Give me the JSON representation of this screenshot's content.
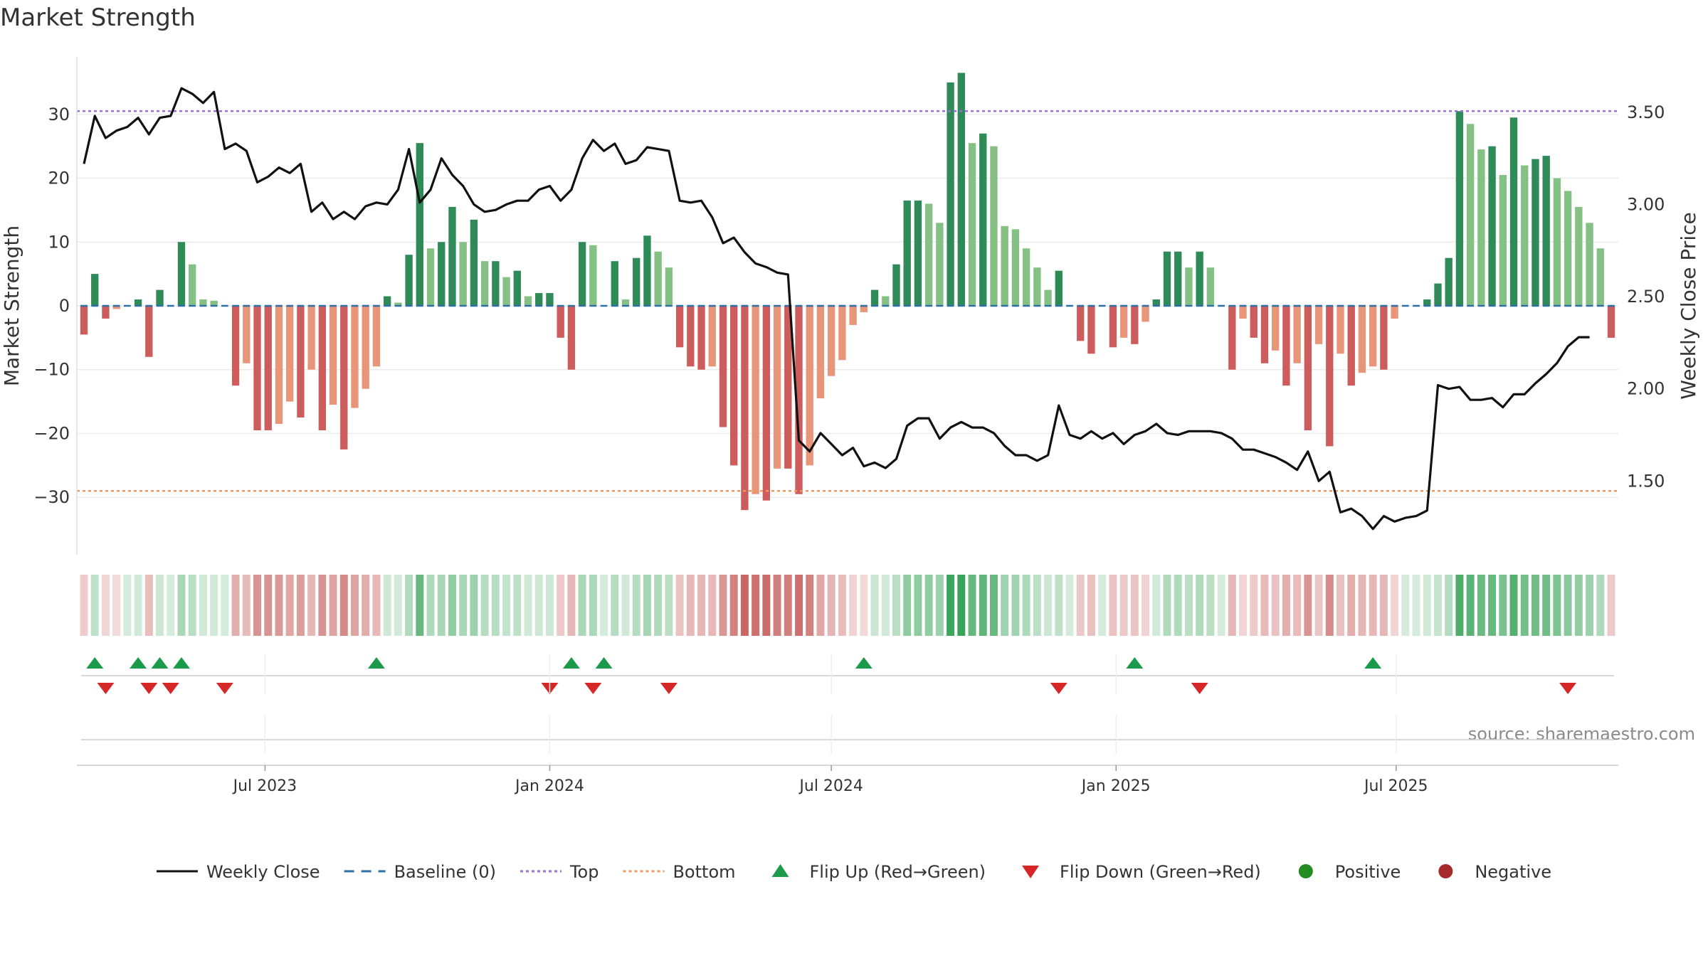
{
  "chart_data": {
    "type": "bar",
    "title": "Market Strength",
    "ylabel_left": "Market Strength",
    "ylabel_right": "Weekly Close Price",
    "source": "source: sharemaestro.com",
    "ylim_left": [
      -39,
      39
    ],
    "ylim_right": [
      1.1,
      3.8
    ],
    "yticks_left": [
      30,
      20,
      10,
      0,
      -10,
      -20,
      -30
    ],
    "yticks_right": [
      3.5,
      3.0,
      2.5,
      2.0,
      1.5
    ],
    "ytick_labels_left": [
      "30",
      "20",
      "10",
      "0",
      "−10",
      "−20",
      "−30"
    ],
    "ytick_labels_right": [
      "3.50",
      "3.00",
      "2.50",
      "2.00",
      "1.50"
    ],
    "x_start": "2023-03-06",
    "x_end": "2025-09-29",
    "week_step_days": 7,
    "xticks": [
      {
        "date": "2023-07-01",
        "label": "Jul 2023"
      },
      {
        "date": "2024-01-01",
        "label": "Jan 2024"
      },
      {
        "date": "2024-07-01",
        "label": "Jul 2024"
      },
      {
        "date": "2025-01-01",
        "label": "Jan 2025"
      },
      {
        "date": "2025-07-01",
        "label": "Jul 2025"
      }
    ],
    "top_line": 30.5,
    "bottom_line": -29,
    "strength": [
      -4.5,
      5,
      -2,
      -0.5,
      0,
      1,
      -8,
      2.5,
      0,
      10,
      6.5,
      1,
      0.8,
      0,
      -12.5,
      -9,
      -19.5,
      -19.5,
      -18.5,
      -15,
      -17.5,
      -10,
      -19.5,
      -15.5,
      -22.5,
      -16,
      -13,
      -9.5,
      1.5,
      0.5,
      8,
      25.5,
      9,
      10,
      15.5,
      10,
      13.5,
      7,
      7,
      4.5,
      5.5,
      1.5,
      2,
      2,
      -5,
      -10,
      10,
      9.5,
      0,
      7,
      1,
      7.5,
      11,
      8.5,
      6,
      -6.5,
      -9.5,
      -10,
      -9.5,
      -19,
      -25,
      -32,
      -29.5,
      -30.5,
      -25.5,
      -25.5,
      -29.5,
      -25,
      -14.5,
      -11,
      -8.5,
      -3,
      -1,
      2.5,
      1.5,
      6.5,
      16.5,
      16.5,
      16,
      13,
      35,
      36.5,
      25.5,
      27,
      25,
      12.5,
      12,
      9,
      6,
      2.5,
      5.5,
      0,
      -5.5,
      -7.5,
      0,
      -6.5,
      -5,
      -6,
      -2.5,
      1,
      8.5,
      8.5,
      6,
      8.5,
      6,
      0,
      -10,
      -2,
      -5,
      -9,
      -7,
      -12.5,
      -9,
      -19.5,
      -6,
      -22,
      -7.5,
      -12.5,
      -10.5,
      -9.5,
      -10,
      -2,
      0,
      0,
      1,
      3.5,
      7.5,
      30.5,
      28.5,
      24.5,
      25,
      20.5,
      29.5,
      22,
      23,
      23.5,
      20,
      18,
      15.5,
      13,
      9,
      -5
    ],
    "weekly_close": [
      3.22,
      3.48,
      3.36,
      3.4,
      3.42,
      3.47,
      3.38,
      3.47,
      3.48,
      3.63,
      3.6,
      3.55,
      3.61,
      3.3,
      3.33,
      3.29,
      3.12,
      3.15,
      3.2,
      3.17,
      3.22,
      2.96,
      3.01,
      2.92,
      2.96,
      2.92,
      2.99,
      3.01,
      3.0,
      3.08,
      3.3,
      3.01,
      3.08,
      3.25,
      3.16,
      3.1,
      3.0,
      2.96,
      2.97,
      3.0,
      3.02,
      3.02,
      3.08,
      3.1,
      3.02,
      3.08,
      3.25,
      3.35,
      3.29,
      3.33,
      3.22,
      3.24,
      3.31,
      3.3,
      3.29,
      3.02,
      3.01,
      3.02,
      2.93,
      2.79,
      2.82,
      2.74,
      2.68,
      2.66,
      2.63,
      2.62,
      1.72,
      1.66,
      1.76,
      1.7,
      1.64,
      1.68,
      1.58,
      1.6,
      1.57,
      1.62,
      1.8,
      1.84,
      1.84,
      1.73,
      1.79,
      1.82,
      1.79,
      1.79,
      1.76,
      1.69,
      1.64,
      1.64,
      1.61,
      1.64,
      1.91,
      1.75,
      1.73,
      1.77,
      1.73,
      1.76,
      1.7,
      1.75,
      1.77,
      1.81,
      1.76,
      1.75,
      1.77,
      1.77,
      1.77,
      1.76,
      1.73,
      1.67,
      1.67,
      1.65,
      1.63,
      1.6,
      1.56,
      1.66,
      1.5,
      1.55,
      1.33,
      1.35,
      1.31,
      1.24,
      1.31,
      1.28,
      1.3,
      1.31,
      1.34,
      2.02,
      2.0,
      2.01,
      1.94,
      1.94,
      1.95,
      1.9,
      1.97,
      1.97,
      2.03,
      2.08,
      2.14,
      2.23,
      2.28,
      2.28
    ],
    "flip_up_weeks": [
      1,
      5,
      7,
      9,
      27,
      45,
      48,
      72,
      97,
      119
    ],
    "flip_down_weeks": [
      2,
      6,
      8,
      13,
      43,
      47,
      54,
      90,
      103,
      137
    ],
    "series": [
      {
        "name": "Weekly Close",
        "color": "#111111",
        "style": "solid"
      },
      {
        "name": "Baseline (0)",
        "color": "#2f6fa8",
        "style": "dashed"
      },
      {
        "name": "Top",
        "color": "#9b6fd6",
        "style": "dotted"
      },
      {
        "name": "Bottom",
        "color": "#ec9a5f",
        "style": "dotted"
      }
    ],
    "legend": {
      "placement": "bottom",
      "items": [
        {
          "label": "Weekly Close",
          "marker": "line-solid",
          "color": "#111111"
        },
        {
          "label": "Baseline (0)",
          "marker": "line-dashed",
          "color": "#2f6fa8"
        },
        {
          "label": "Top",
          "marker": "line-dotted",
          "color": "#9b6fd6"
        },
        {
          "label": "Bottom",
          "marker": "line-dotted",
          "color": "#ec9a5f"
        },
        {
          "label": "Flip Up (Red→Green)",
          "marker": "triangle-up",
          "color": "#1a9a4a"
        },
        {
          "label": "Flip Down (Green→Red)",
          "marker": "triangle-down",
          "color": "#d62728"
        },
        {
          "label": "Positive",
          "marker": "dot",
          "color": "#228b22"
        },
        {
          "label": "Negative",
          "marker": "dot",
          "color": "#a52a2a"
        }
      ]
    },
    "colors": {
      "pos_strong": "#2e8b57",
      "pos_light": "#85c085",
      "neg_strong": "#cd5c5c",
      "neg_light": "#e8967a",
      "flip_up": "#1a9a4a",
      "flip_down": "#d62728"
    }
  }
}
